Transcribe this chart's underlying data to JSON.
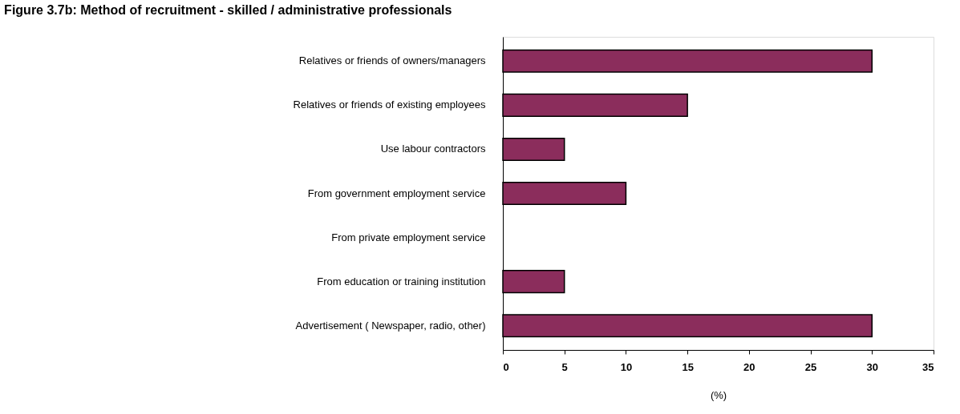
{
  "chart_data": {
    "type": "bar",
    "orientation": "horizontal",
    "title": "Figure 3.7b: Method of recruitment - skilled / administrative professionals",
    "xlabel": "(%)",
    "categories": [
      "Relatives or friends of owners/managers",
      "Relatives or friends of existing employees",
      "Use labour contractors",
      "From government employment service",
      "From private employment service",
      "From education or training institution",
      "Advertisement ( Newspaper, radio, other)"
    ],
    "values": [
      30,
      15,
      5,
      10,
      0,
      5,
      30
    ],
    "color": "#8b2d5c",
    "xlim": [
      0,
      35
    ],
    "xticks": [
      0,
      5,
      10,
      15,
      20,
      25,
      30,
      35
    ],
    "grid": false
  }
}
